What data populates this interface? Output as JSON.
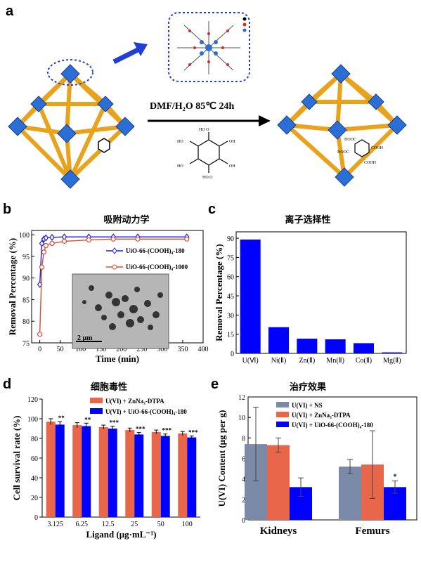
{
  "panels": {
    "a": {
      "letter": "a",
      "condition": "DMF/H₂O  85℃ 24h",
      "cooh_labels": [
        "HOOC",
        "HOOC",
        "COOH",
        "COOH"
      ]
    },
    "b": {
      "letter": "b",
      "title": "吸附动力学"
    },
    "c": {
      "letter": "c",
      "title": "离子选择性"
    },
    "d": {
      "letter": "d",
      "title": "细胞毒性"
    },
    "e": {
      "letter": "e",
      "title": "治疗效果"
    }
  },
  "chart_data": [
    {
      "id": "b",
      "type": "line",
      "title": "吸附动力学",
      "xlabel": "Time (min)",
      "ylabel": "Removal Percentage (%)",
      "xlim": [
        -20,
        400
      ],
      "ylim": [
        75,
        101
      ],
      "xticks": [
        0,
        50,
        100,
        150,
        200,
        250,
        300,
        350,
        400
      ],
      "yticks": [
        75,
        80,
        85,
        90,
        95,
        100
      ],
      "inset_scale_label": "2 μm",
      "series": [
        {
          "name": "UiO-66-(COOH)₄-180",
          "color": "#1f1fd6",
          "marker": "diamond",
          "x": [
            0,
            5,
            10,
            15,
            30,
            60,
            120,
            180,
            240,
            360
          ],
          "y": [
            88.5,
            98.0,
            99.0,
            99.3,
            99.4,
            99.5,
            99.5,
            99.5,
            99.5,
            99.5
          ]
        },
        {
          "name": "UiO-66-(COOH)₄-1000",
          "color": "#e0492f",
          "marker": "circle",
          "x": [
            0,
            5,
            10,
            15,
            30,
            60,
            120,
            180,
            240,
            360
          ],
          "y": [
            77.0,
            92.5,
            96.0,
            97.5,
            98.0,
            98.5,
            98.8,
            99.0,
            99.0,
            99.0
          ]
        }
      ]
    },
    {
      "id": "c",
      "type": "bar",
      "title": "离子选择性",
      "ylabel": "Removal Percentage (%)",
      "categories": [
        "U(Ⅵ)",
        "Ni(Ⅱ)",
        "Zn(Ⅱ)",
        "Mn(Ⅱ)",
        "Co(Ⅱ)",
        "Mg(Ⅱ)"
      ],
      "values": [
        89,
        20.5,
        11.5,
        11,
        8,
        0.8
      ],
      "ylim": [
        0,
        95
      ],
      "yticks": [
        0,
        15,
        30,
        45,
        60,
        75,
        90
      ],
      "color": "#0000ff"
    },
    {
      "id": "d",
      "type": "bar",
      "title": "细胞毒性",
      "xlabel": "Ligand (μg·mL⁻¹)",
      "ylabel": "Cell survival rate (%)",
      "categories": [
        "3.125",
        "6.25",
        "12.5",
        "25",
        "50",
        "100"
      ],
      "ylim": [
        0,
        120
      ],
      "yticks": [
        0,
        20,
        40,
        60,
        80,
        100,
        120
      ],
      "series": [
        {
          "name": "U(VI) + ZnNa₃-DTPA",
          "color": "#e8674a",
          "values": [
            97,
            93.5,
            91.5,
            88.5,
            86.5,
            85
          ],
          "errors": [
            3,
            2.5,
            2,
            2,
            2,
            2
          ]
        },
        {
          "name": "U(VI) + UiO-66-(COOH)₄-180",
          "color": "#0000ff",
          "values": [
            94,
            92.5,
            90,
            84,
            82.5,
            81
          ],
          "errors": [
            3,
            3,
            2.5,
            2,
            2,
            1.5
          ]
        }
      ],
      "significance": [
        "**",
        "**",
        "***",
        "***",
        "***",
        "***"
      ]
    },
    {
      "id": "e",
      "type": "bar",
      "title": "治疗效果",
      "ylabel": "U(VI) Content (μg per g)",
      "categories": [
        "Kidneys",
        "Femurs"
      ],
      "ylim": [
        0,
        12
      ],
      "yticks": [
        0,
        2,
        4,
        6,
        8,
        10,
        12
      ],
      "series": [
        {
          "name": "U(VI) + NS",
          "color": "#7b8aa6",
          "values": [
            7.4,
            5.2
          ],
          "errors": [
            3.6,
            0.7
          ]
        },
        {
          "name": "U(VI) + ZnNa₃-DTPA",
          "color": "#e8674a",
          "values": [
            7.3,
            5.4
          ],
          "errors": [
            0.7,
            3.3
          ]
        },
        {
          "name": "U(VI) + UiO-66-(COOH)₄-180",
          "color": "#0000ff",
          "values": [
            3.2,
            3.2
          ],
          "errors": [
            0.9,
            0.6
          ]
        }
      ],
      "significance": [
        "",
        "*"
      ]
    }
  ]
}
